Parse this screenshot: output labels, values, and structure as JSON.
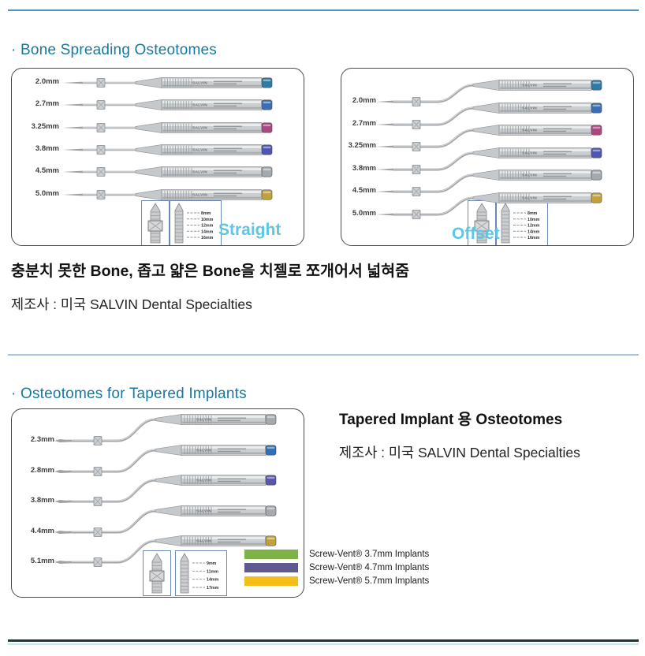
{
  "brand": "SALVIN",
  "colors": {
    "accent": "#1878A0",
    "style_label": "#5CC6E6",
    "top_line": "#4E93C4",
    "divider": "#A5C6DE",
    "bottom_dark": "#17383C",
    "bottom_light": "#C8E6E8"
  },
  "section1": {
    "title": "· Bone Spreading Osteotomes",
    "straight": {
      "label": "Straight",
      "instruments": [
        {
          "size": "2.0mm",
          "cap": "#2E7BA6"
        },
        {
          "size": "2.7mm",
          "cap": "#3B6FB5"
        },
        {
          "size": "3.25mm",
          "cap": "#AC4880"
        },
        {
          "size": "3.8mm",
          "cap": "#4E56B2"
        },
        {
          "size": "4.5mm",
          "cap": "#A3A9AF"
        },
        {
          "size": "5.0mm",
          "cap": "#C2A13C"
        }
      ],
      "depths": [
        "8mm",
        "10mm",
        "12mm",
        "14mm",
        "16mm"
      ]
    },
    "offset": {
      "label": "Offset",
      "instruments": [
        {
          "size": "2.0mm",
          "cap": "#2E7BA6"
        },
        {
          "size": "2.7mm",
          "cap": "#3B6FB5"
        },
        {
          "size": "3.25mm",
          "cap": "#AC4880"
        },
        {
          "size": "3.8mm",
          "cap": "#4E56B2"
        },
        {
          "size": "4.5mm",
          "cap": "#A3A9AF"
        },
        {
          "size": "5.0mm",
          "cap": "#C2A13C"
        }
      ],
      "depths": [
        "8mm",
        "10mm",
        "12mm",
        "14mm",
        "16mm"
      ]
    },
    "description": "충분치 못한 Bone, 좁고 얇은 Bone을 치젤로 쪼개어서 넓혀줌",
    "manufacturer": "제조사 : 미국 SALVIN Dental Specialties"
  },
  "section2": {
    "title": "· Osteotomes for Tapered Implants",
    "heading": "Tapered Implant 용 Osteotomes",
    "manufacturer": "제조사 : 미국 SALVIN Dental Specialties",
    "tapered": {
      "instruments": [
        {
          "size": "2.3mm",
          "cap": "#A6AAAE"
        },
        {
          "size": "2.8mm",
          "cap": "#2F6FB5"
        },
        {
          "size": "3.8mm",
          "cap": "#5956AC"
        },
        {
          "size": "4.4mm",
          "cap": "#A6AAAE"
        },
        {
          "size": "5.1mm",
          "cap": "#C2A13C"
        }
      ],
      "depths": [
        "9mm",
        "11mm",
        "14mm",
        "17mm"
      ]
    },
    "legend": [
      {
        "color": "#7DB247",
        "label": "Screw-Vent® 3.7mm Implants"
      },
      {
        "color": "#5F5990",
        "label": "Screw-Vent® 4.7mm Implants"
      },
      {
        "color": "#F5BD18",
        "label": "Screw-Vent® 5.7mm Implants"
      }
    ]
  }
}
